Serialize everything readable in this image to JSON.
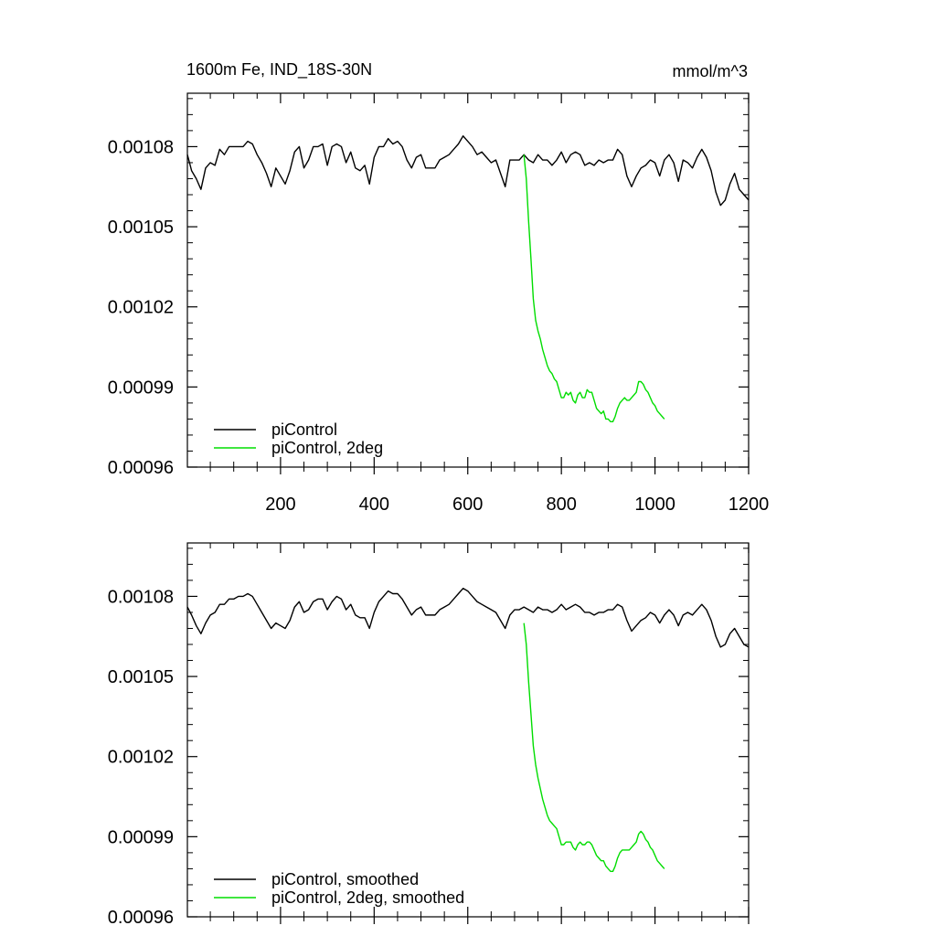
{
  "chart_data": [
    {
      "type": "line",
      "title": "1600m Fe, IND_18S-30N",
      "units": "mmol/m^3",
      "xlim": [
        1,
        1200
      ],
      "ylim": [
        0.00096,
        0.0011
      ],
      "xticks": [
        200,
        400,
        600,
        800,
        1000,
        1200
      ],
      "xtick_labels": [
        "200",
        "400",
        "600",
        "800",
        "1000",
        "1200"
      ],
      "xticks_labeled": true,
      "yticks": [
        0.00096,
        0.00099,
        0.00102,
        0.00105,
        0.00108
      ],
      "ytick_labels": [
        "0.00096",
        "0.00099",
        "0.00102",
        "0.00105",
        "0.00108"
      ],
      "grid": false,
      "legend_position": "bottom-left",
      "series": [
        {
          "name": "piControl",
          "color": "#000000",
          "smoothed": false,
          "x": [
            1,
            10,
            20,
            30,
            40,
            50,
            60,
            70,
            80,
            90,
            100,
            110,
            120,
            130,
            140,
            150,
            160,
            170,
            180,
            190,
            200,
            210,
            220,
            230,
            240,
            250,
            260,
            270,
            280,
            290,
            300,
            310,
            320,
            330,
            340,
            350,
            360,
            370,
            380,
            390,
            400,
            410,
            420,
            430,
            440,
            450,
            460,
            470,
            480,
            490,
            500,
            510,
            520,
            530,
            540,
            550,
            560,
            570,
            580,
            590,
            600,
            610,
            620,
            630,
            640,
            650,
            660,
            670,
            680,
            690,
            700,
            710,
            720,
            730,
            740,
            750,
            760,
            770,
            780,
            790,
            800,
            810,
            820,
            830,
            840,
            850,
            860,
            870,
            880,
            890,
            900,
            910,
            920,
            930,
            940,
            950,
            960,
            970,
            980,
            990,
            1000,
            1010,
            1020,
            1030,
            1040,
            1050,
            1060,
            1070,
            1080,
            1090,
            1100,
            1110,
            1120,
            1130,
            1140,
            1150,
            1160,
            1170,
            1180,
            1190,
            1200
          ],
          "y": [
            0.001077,
            0.001071,
            0.001068,
            0.001064,
            0.001072,
            0.001074,
            0.001073,
            0.001079,
            0.001077,
            0.00108,
            0.00108,
            0.00108,
            0.00108,
            0.001082,
            0.001081,
            0.001077,
            0.001074,
            0.00107,
            0.001065,
            0.001072,
            0.001069,
            0.001066,
            0.001071,
            0.001078,
            0.00108,
            0.001072,
            0.001075,
            0.00108,
            0.00108,
            0.001081,
            0.001073,
            0.00108,
            0.001081,
            0.00108,
            0.001074,
            0.001078,
            0.001072,
            0.001071,
            0.001073,
            0.001066,
            0.001076,
            0.00108,
            0.00108,
            0.001083,
            0.001081,
            0.001082,
            0.00108,
            0.001075,
            0.001072,
            0.001076,
            0.001077,
            0.001072,
            0.001072,
            0.001072,
            0.001075,
            0.001076,
            0.001077,
            0.001079,
            0.001081,
            0.001084,
            0.001082,
            0.00108,
            0.001077,
            0.001078,
            0.001076,
            0.001074,
            0.001075,
            0.00107,
            0.001065,
            0.001075,
            0.001075,
            0.001075,
            0.001077,
            0.001075,
            0.001074,
            0.001077,
            0.001075,
            0.001075,
            0.001073,
            0.001075,
            0.001078,
            0.001074,
            0.001077,
            0.001078,
            0.001077,
            0.001073,
            0.001074,
            0.001073,
            0.001075,
            0.001074,
            0.001075,
            0.001075,
            0.001079,
            0.001077,
            0.001069,
            0.001065,
            0.001069,
            0.001072,
            0.001073,
            0.001075,
            0.001074,
            0.001069,
            0.001075,
            0.001077,
            0.001074,
            0.001067,
            0.001075,
            0.001074,
            0.001072,
            0.001076,
            0.001079,
            0.001076,
            0.001071,
            0.001063,
            0.001058,
            0.00106,
            0.001066,
            0.00107,
            0.001064,
            0.001062,
            0.00106
          ]
        },
        {
          "name": "piControl, 2deg",
          "color": "#00dd00",
          "smoothed": false,
          "x": [
            720,
            725,
            730,
            735,
            740,
            745,
            750,
            755,
            760,
            765,
            770,
            775,
            780,
            785,
            790,
            795,
            800,
            805,
            810,
            815,
            820,
            825,
            830,
            835,
            840,
            845,
            850,
            855,
            860,
            865,
            870,
            875,
            880,
            885,
            890,
            895,
            900,
            905,
            910,
            915,
            920,
            925,
            930,
            935,
            940,
            945,
            950,
            955,
            960,
            965,
            970,
            975,
            980,
            985,
            990,
            995,
            1000,
            1005,
            1010,
            1015,
            1020
          ],
          "y": [
            0.001077,
            0.001068,
            0.001052,
            0.001038,
            0.001023,
            0.001015,
            0.001011,
            0.001008,
            0.001004,
            0.001001,
            0.000998,
            0.000996,
            0.000995,
            0.000993,
            0.000992,
            0.000989,
            0.000986,
            0.000986,
            0.000988,
            0.000987,
            0.000988,
            0.000985,
            0.000984,
            0.000987,
            0.000988,
            0.000986,
            0.000986,
            0.000989,
            0.000988,
            0.000988,
            0.000985,
            0.000982,
            0.000981,
            0.00098,
            0.000981,
            0.000978,
            0.000978,
            0.000977,
            0.000977,
            0.000979,
            0.000982,
            0.000984,
            0.000985,
            0.000986,
            0.000985,
            0.000985,
            0.000986,
            0.000987,
            0.000988,
            0.000992,
            0.000992,
            0.000991,
            0.000989,
            0.000988,
            0.000986,
            0.000984,
            0.000983,
            0.000981,
            0.00098,
            0.000979,
            0.000978
          ]
        }
      ]
    },
    {
      "type": "line",
      "title": "",
      "units": "",
      "xlim": [
        1,
        1200
      ],
      "ylim": [
        0.00096,
        0.0011
      ],
      "xticks": [
        200,
        400,
        600,
        800,
        1000,
        1200
      ],
      "xtick_labels": [],
      "xticks_labeled": false,
      "yticks": [
        0.00096,
        0.00099,
        0.00102,
        0.00105,
        0.00108
      ],
      "ytick_labels": [
        "0.00096",
        "0.00099",
        "0.00102",
        "0.00105",
        "0.00108"
      ],
      "grid": false,
      "legend_position": "bottom-left",
      "series": [
        {
          "name": "piControl, smoothed",
          "color": "#000000",
          "smoothed": true,
          "x": [
            1,
            10,
            20,
            30,
            40,
            50,
            60,
            70,
            80,
            90,
            100,
            110,
            120,
            130,
            140,
            150,
            160,
            170,
            180,
            190,
            200,
            210,
            220,
            230,
            240,
            250,
            260,
            270,
            280,
            290,
            300,
            310,
            320,
            330,
            340,
            350,
            360,
            370,
            380,
            390,
            400,
            410,
            420,
            430,
            440,
            450,
            460,
            470,
            480,
            490,
            500,
            510,
            520,
            530,
            540,
            550,
            560,
            570,
            580,
            590,
            600,
            610,
            620,
            630,
            640,
            650,
            660,
            670,
            680,
            690,
            700,
            710,
            720,
            730,
            740,
            750,
            760,
            770,
            780,
            790,
            800,
            810,
            820,
            830,
            840,
            850,
            860,
            870,
            880,
            890,
            900,
            910,
            920,
            930,
            940,
            950,
            960,
            970,
            980,
            990,
            1000,
            1010,
            1020,
            1030,
            1040,
            1050,
            1060,
            1070,
            1080,
            1090,
            1100,
            1110,
            1120,
            1130,
            1140,
            1150,
            1160,
            1170,
            1180,
            1190,
            1200
          ],
          "y": [
            0.001076,
            0.001073,
            0.001069,
            0.001066,
            0.00107,
            0.001073,
            0.001074,
            0.001077,
            0.001077,
            0.001079,
            0.001079,
            0.00108,
            0.00108,
            0.001081,
            0.00108,
            0.001077,
            0.001074,
            0.001071,
            0.001068,
            0.00107,
            0.001069,
            0.001068,
            0.001071,
            0.001076,
            0.001078,
            0.001074,
            0.001075,
            0.001078,
            0.001079,
            0.001079,
            0.001075,
            0.001078,
            0.00108,
            0.001079,
            0.001075,
            0.001077,
            0.001073,
            0.001072,
            0.001072,
            0.001068,
            0.001074,
            0.001078,
            0.00108,
            0.001082,
            0.001081,
            0.001081,
            0.001079,
            0.001076,
            0.001073,
            0.001075,
            0.001076,
            0.001073,
            0.001073,
            0.001073,
            0.001075,
            0.001076,
            0.001077,
            0.001079,
            0.001081,
            0.001083,
            0.001082,
            0.00108,
            0.001078,
            0.001077,
            0.001076,
            0.001075,
            0.001074,
            0.001071,
            0.001068,
            0.001073,
            0.001075,
            0.001075,
            0.001076,
            0.001075,
            0.001074,
            0.001076,
            0.001075,
            0.001075,
            0.001074,
            0.001075,
            0.001077,
            0.001075,
            0.001076,
            0.001077,
            0.001076,
            0.001074,
            0.001074,
            0.001073,
            0.001074,
            0.001074,
            0.001075,
            0.001075,
            0.001077,
            0.001076,
            0.001071,
            0.001067,
            0.001069,
            0.001071,
            0.001072,
            0.001074,
            0.001073,
            0.00107,
            0.001073,
            0.001075,
            0.001073,
            0.001069,
            0.001073,
            0.001074,
            0.001073,
            0.001075,
            0.001077,
            0.001075,
            0.001071,
            0.001065,
            0.001061,
            0.001062,
            0.001066,
            0.001068,
            0.001065,
            0.001062,
            0.001061
          ]
        },
        {
          "name": "piControl, 2deg, smoothed",
          "color": "#00dd00",
          "smoothed": true,
          "x": [
            720,
            725,
            730,
            735,
            740,
            745,
            750,
            755,
            760,
            765,
            770,
            775,
            780,
            785,
            790,
            795,
            800,
            805,
            810,
            815,
            820,
            825,
            830,
            835,
            840,
            845,
            850,
            855,
            860,
            865,
            870,
            875,
            880,
            885,
            890,
            895,
            900,
            905,
            910,
            915,
            920,
            925,
            930,
            935,
            940,
            945,
            950,
            955,
            960,
            965,
            970,
            975,
            980,
            985,
            990,
            995,
            1000,
            1005,
            1010,
            1015,
            1020
          ],
          "y": [
            0.00107,
            0.001062,
            0.001048,
            0.001036,
            0.001024,
            0.001017,
            0.001012,
            0.001008,
            0.001004,
            0.001001,
            0.000998,
            0.000996,
            0.000995,
            0.000994,
            0.000993,
            0.00099,
            0.000987,
            0.000987,
            0.000988,
            0.000988,
            0.000988,
            0.000986,
            0.000985,
            0.000987,
            0.000988,
            0.000987,
            0.000987,
            0.000988,
            0.000988,
            0.000987,
            0.000985,
            0.000983,
            0.000982,
            0.000981,
            0.000981,
            0.000979,
            0.000978,
            0.000977,
            0.000977,
            0.000979,
            0.000982,
            0.000984,
            0.000985,
            0.000985,
            0.000985,
            0.000985,
            0.000986,
            0.000987,
            0.000988,
            0.000991,
            0.000992,
            0.000991,
            0.000989,
            0.000988,
            0.000986,
            0.000985,
            0.000983,
            0.000981,
            0.00098,
            0.000979,
            0.000978
          ]
        }
      ]
    }
  ]
}
